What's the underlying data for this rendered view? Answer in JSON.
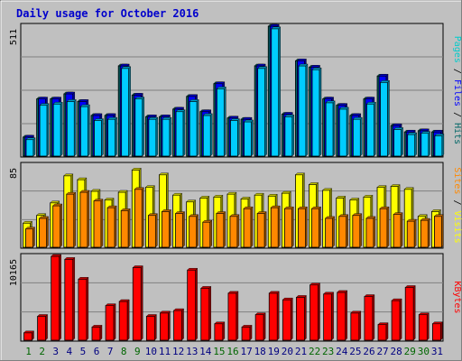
{
  "chart_data": {
    "type": "bar",
    "title": "Daily usage for October 2016",
    "days": [
      "1",
      "2",
      "3",
      "4",
      "5",
      "6",
      "7",
      "8",
      "9",
      "10",
      "11",
      "12",
      "13",
      "14",
      "15",
      "16",
      "17",
      "18",
      "19",
      "20",
      "21",
      "22",
      "23",
      "24",
      "25",
      "26",
      "27",
      "28",
      "29",
      "30",
      "31"
    ],
    "weekend_days": [
      "1",
      "2",
      "8",
      "9",
      "15",
      "16",
      "22",
      "23",
      "29",
      "30"
    ],
    "colors": {
      "background": "#c0c0c0",
      "panel": "#c0c0c0",
      "grid": "#808080",
      "pages": "#006666",
      "files": "#0000ff",
      "hits": "#00ccff",
      "visits": "#ffff00",
      "sites": "#ff8800",
      "kbytes": "#ff0000",
      "title": "#0000cc",
      "weekday_label": "#000080",
      "weekend_label": "#006600"
    },
    "panels": [
      {
        "id": "hits",
        "max_label": "511",
        "max": 511,
        "legend": [
          {
            "text": "Pages",
            "color": "#00cccc"
          },
          {
            "text": " / ",
            "color": "#000000"
          },
          {
            "text": "Files",
            "color": "#0000ff"
          },
          {
            "text": " / ",
            "color": "#000000"
          },
          {
            "text": "Hits",
            "color": "#006666"
          }
        ],
        "series": [
          {
            "name": "Pages",
            "values": [
              75,
              225,
              225,
              245,
              215,
              160,
              160,
              355,
              240,
              155,
              155,
              185,
              235,
              175,
              285,
              150,
              145,
              355,
              511,
              165,
              375,
              350,
              225,
              200,
              160,
              225,
              315,
              120,
              95,
              100,
              95
            ]
          },
          {
            "name": "Files",
            "values": [
              75,
              225,
              225,
              245,
              215,
              160,
              160,
              355,
              240,
              155,
              155,
              185,
              235,
              175,
              285,
              150,
              145,
              355,
              511,
              165,
              375,
              350,
              225,
              200,
              160,
              225,
              315,
              120,
              95,
              100,
              95
            ]
          },
          {
            "name": "Hits",
            "values": [
              65,
              200,
              205,
              215,
              195,
              140,
              145,
              345,
              225,
              145,
              145,
              175,
              215,
              160,
              265,
              140,
              135,
              345,
              501,
              155,
              355,
              340,
              210,
              185,
              145,
              205,
              290,
              105,
              85,
              90,
              80
            ]
          }
        ]
      },
      {
        "id": "visits",
        "max_label": "85",
        "max": 85,
        "legend": [
          {
            "text": "Sites",
            "color": "#ff8800"
          },
          {
            "text": " / ",
            "color": "#000000"
          },
          {
            "text": "Visits",
            "color": "#ffff00"
          }
        ],
        "series": [
          {
            "name": "Visits",
            "values": [
              25,
              33,
              46,
              74,
              70,
              58,
              49,
              57,
              80,
              62,
              75,
              54,
              47,
              51,
              52,
              55,
              50,
              54,
              53,
              56,
              75,
              65,
              59,
              51,
              49,
              52,
              62,
              63,
              60,
              32,
              37
            ]
          },
          {
            "name": "Sites",
            "values": [
              19,
              30,
              43,
              55,
              57,
              48,
              41,
              38,
              60,
              33,
              37,
              35,
              32,
              26,
              35,
              32,
              40,
              35,
              41,
              40,
              40,
              40,
              30,
              32,
              33,
              30,
              40,
              34,
              27,
              28,
              32
            ]
          }
        ]
      },
      {
        "id": "kbytes",
        "max_label": "10165",
        "max": 10165,
        "legend": [
          {
            "text": "KBytes",
            "color": "#ff0000"
          }
        ],
        "series": [
          {
            "name": "KBytes",
            "values": [
              900,
              2900,
              10165,
              9800,
              7400,
              1600,
              4200,
              4700,
              8800,
              2900,
              3300,
              3600,
              8500,
              6300,
              2000,
              5700,
              1600,
              3100,
              5700,
              4900,
              5200,
              6700,
              5600,
              5800,
              3300,
              5300,
              1900,
              4800,
              6400,
              3100,
              2000
            ]
          }
        ]
      }
    ]
  }
}
